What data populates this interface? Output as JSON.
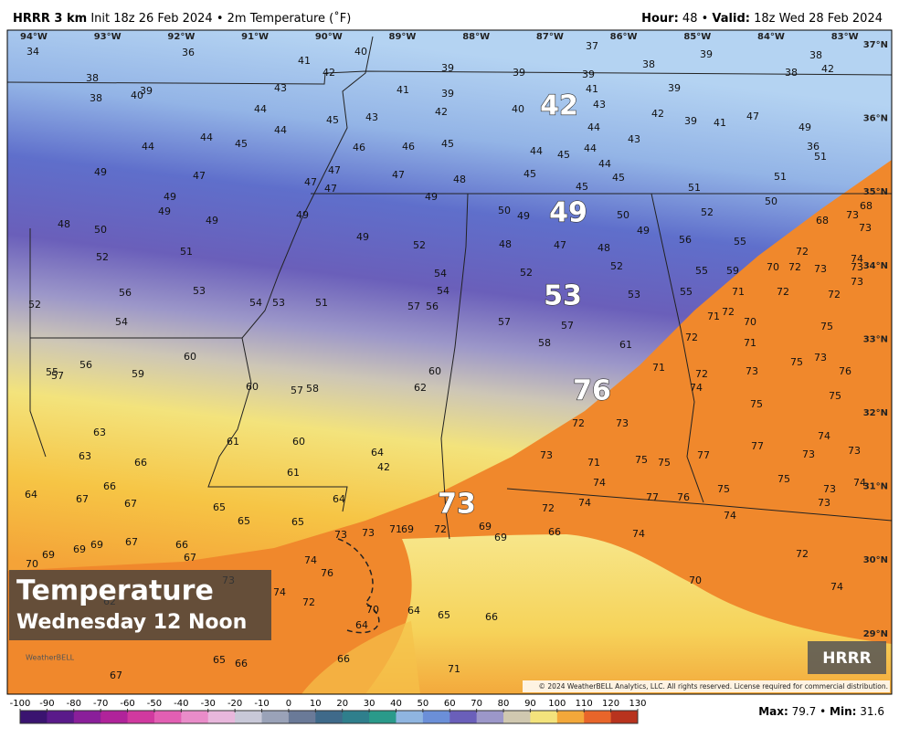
{
  "header": {
    "model": "HRRR 3 km",
    "init": "Init 18z 26 Feb 2024",
    "sep": "•",
    "field": "2m Temperature (˚F)",
    "hour_label": "Hour:",
    "hour": 48,
    "valid_label": "Valid:",
    "valid": "18z Wed 28 Feb 2024"
  },
  "overlay": {
    "title": "Temperature",
    "subtitle": "Wednesday 12 Noon",
    "model_badge": "HRRR",
    "logo": "WeatherBELL"
  },
  "copyright": "© 2024 WeatherBELL Analytics, LLC. All rights reserved. License required for commercial distribution.",
  "longitudes": [
    "94°W",
    "93°W",
    "92°W",
    "91°W",
    "90°W",
    "89°W",
    "88°W",
    "87°W",
    "86°W",
    "85°W",
    "84°W",
    "83°W"
  ],
  "latitudes": [
    "37°N",
    "36°N",
    "35°N",
    "34°N",
    "33°N",
    "32°N",
    "31°N",
    "30°N",
    "29°N"
  ],
  "highlights": [
    42,
    49,
    53,
    76,
    73
  ],
  "stations": [
    34,
    36,
    41,
    40,
    37,
    38,
    39,
    38,
    39,
    39,
    39,
    38,
    42,
    38,
    40,
    39,
    38,
    42,
    43,
    41,
    39,
    41,
    39,
    44,
    43,
    42,
    40,
    43,
    42,
    39,
    41,
    47,
    49,
    44,
    44,
    45,
    44,
    43,
    36,
    44,
    45,
    46,
    46,
    45,
    44,
    45,
    44,
    44,
    51,
    49,
    47,
    47,
    47,
    48,
    45,
    45,
    45,
    51,
    47,
    47,
    51,
    49,
    49,
    50,
    49,
    49,
    49,
    50,
    49,
    50,
    52,
    68,
    73,
    73,
    68,
    48,
    50,
    49,
    56,
    55,
    49,
    52,
    48,
    47,
    48,
    72,
    51,
    52,
    74,
    52,
    55,
    59,
    70,
    72,
    73,
    73,
    54,
    52,
    73,
    56,
    53,
    54,
    53,
    55,
    71,
    72,
    72,
    52,
    54,
    53,
    51,
    57,
    56,
    72,
    71,
    70,
    75,
    54,
    57,
    57,
    72,
    71,
    58,
    61,
    73,
    60,
    56,
    59,
    55,
    57,
    75,
    71,
    72,
    73,
    76,
    60,
    74,
    57,
    58,
    62,
    60,
    75,
    75,
    72,
    73,
    63,
    74,
    61,
    60,
    77,
    73,
    64,
    63,
    73,
    71,
    75,
    75,
    77,
    73,
    66,
    42,
    61,
    74,
    75,
    74,
    73,
    66,
    64,
    67,
    77,
    76,
    75,
    64,
    67,
    65,
    72,
    74,
    73,
    74,
    65,
    65,
    73,
    73,
    71,
    69,
    72,
    69,
    69,
    66,
    74,
    66,
    67,
    69,
    69,
    67,
    69,
    70,
    72,
    74,
    76,
    73,
    70,
    74,
    74,
    72,
    70,
    64,
    65,
    66,
    64,
    65,
    66,
    66,
    67,
    71,
    62
  ],
  "colorbar": {
    "ticks": [
      -100,
      -90,
      -80,
      -70,
      -60,
      -50,
      -40,
      -30,
      -20,
      -10,
      0,
      10,
      20,
      30,
      40,
      50,
      60,
      70,
      80,
      90,
      100,
      110,
      120,
      130
    ]
  },
  "stats": {
    "max_label": "Max:",
    "max": 79.7,
    "sep": "•",
    "min_label": "Min:",
    "min": 31.6
  }
}
